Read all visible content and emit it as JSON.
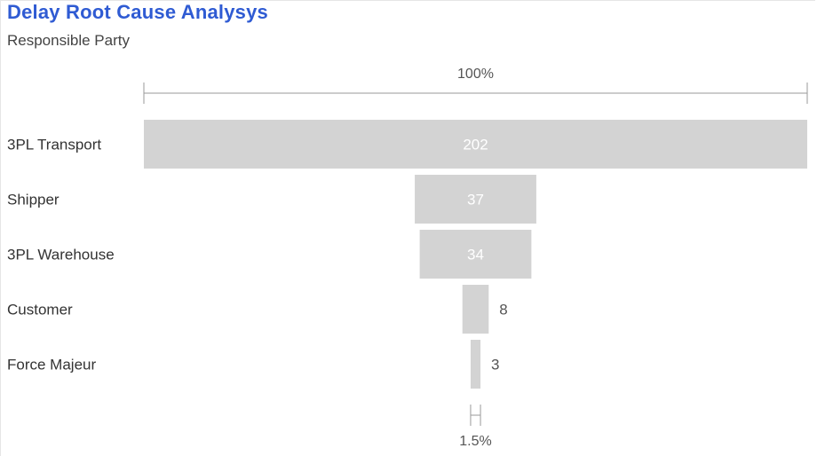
{
  "header": {
    "title": "Delay Root Cause Analysys",
    "subtitle": "Responsible Party"
  },
  "chart_data": {
    "type": "funnel",
    "title": "Delay Root Cause Analysys",
    "subtitle": "Responsible Party",
    "categories": [
      "3PL Transport",
      "Shipper",
      "3PL Warehouse",
      "Customer",
      "Force Majeur"
    ],
    "values": [
      202,
      37,
      34,
      8,
      3
    ],
    "value_labels": [
      "202",
      "37",
      "34",
      "8",
      "3"
    ],
    "top_percent_label": "100%",
    "bottom_percent_label": "1.5%",
    "bar_color": "#d3d3d3"
  }
}
